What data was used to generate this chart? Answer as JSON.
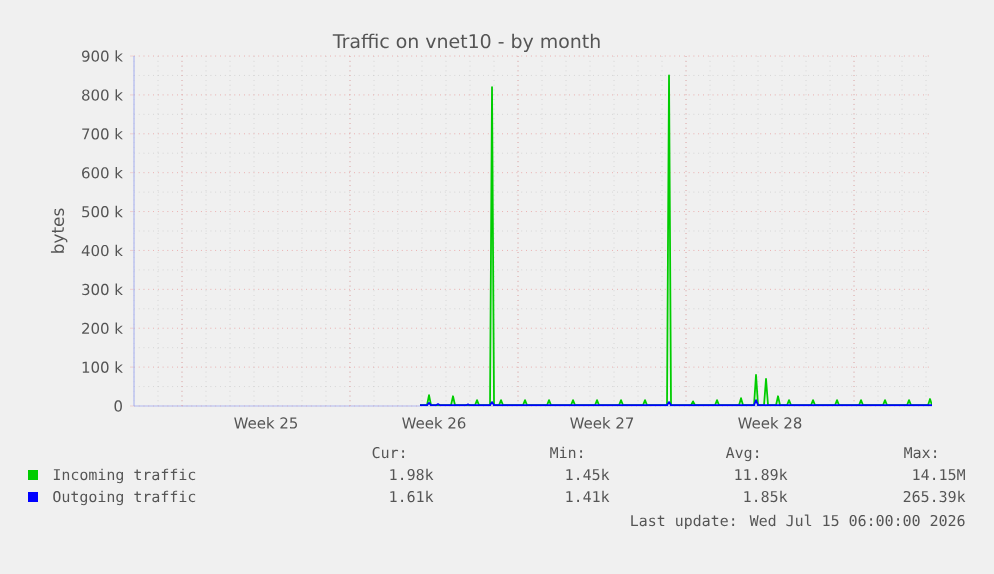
{
  "chart_data": {
    "type": "line",
    "title": "Traffic on vnet10 - by month",
    "ylabel": "bytes",
    "xlim": [
      "2026-06-12",
      "2026-07-15T06:00"
    ],
    "ylim": [
      0,
      900000
    ],
    "xticks": [
      {
        "value": "2026-06-14",
        "label": null
      },
      {
        "value": "2026-06-17T12:00",
        "label": "Week 25"
      },
      {
        "value": "2026-06-21",
        "label": null
      },
      {
        "value": "2026-06-24T12:00",
        "label": "Week 26"
      },
      {
        "value": "2026-06-28",
        "label": null
      },
      {
        "value": "2026-07-01T12:00",
        "label": "Week 27"
      },
      {
        "value": "2026-07-05",
        "label": null
      },
      {
        "value": "2026-07-08T12:00",
        "label": "Week 28"
      },
      {
        "value": "2026-07-12",
        "label": null
      }
    ],
    "yticks": [
      0,
      {
        "value": 100000,
        "label": "100 k"
      },
      {
        "value": 200000,
        "label": "200 k"
      },
      {
        "value": 300000,
        "label": "300 k"
      },
      {
        "value": 400000,
        "label": "400 k"
      },
      {
        "value": 500000,
        "label": "500 k"
      },
      {
        "value": 600000,
        "label": "600 k"
      },
      {
        "value": 700000,
        "label": "700 k"
      },
      {
        "value": 800000,
        "label": "800 k"
      },
      {
        "value": 900000,
        "label": "900 k"
      }
    ],
    "grid": true,
    "legend": "bottom",
    "marker": "none",
    "line_style": "solid",
    "series": [
      {
        "name": "Incoming traffic",
        "color": "#00cc00",
        "x": [
          "2026-06-23T22:00",
          "2026-06-24T05:00",
          "2026-06-24T07:00",
          "2026-06-24T09:00",
          "2026-06-25T05:00",
          "2026-06-25T07:00",
          "2026-06-25T09:00",
          "2026-06-26T05:00",
          "2026-06-26T07:00",
          "2026-06-26T09:00",
          "2026-06-26T20:00",
          "2026-06-26T22:00",
          "2026-06-27T00:00",
          "2026-06-27T05:00",
          "2026-06-27T07:00",
          "2026-06-27T09:00",
          "2026-06-28T05:00",
          "2026-06-28T07:00",
          "2026-06-28T09:00",
          "2026-06-29T05:00",
          "2026-06-29T07:00",
          "2026-06-29T09:00",
          "2026-06-30T05:00",
          "2026-06-30T07:00",
          "2026-06-30T09:00",
          "2026-07-01T05:00",
          "2026-07-01T07:00",
          "2026-07-01T09:00",
          "2026-07-02T05:00",
          "2026-07-02T07:00",
          "2026-07-02T09:00",
          "2026-07-03T05:00",
          "2026-07-03T07:00",
          "2026-07-03T09:00",
          "2026-07-04T05:00",
          "2026-07-04T07:00",
          "2026-07-04T09:00",
          "2026-07-05T05:00",
          "2026-07-05T07:00",
          "2026-07-05T09:00",
          "2026-07-06T05:00",
          "2026-07-06T07:00",
          "2026-07-06T09:00",
          "2026-07-07T05:00",
          "2026-07-07T07:00",
          "2026-07-07T09:00",
          "2026-07-07T20:00",
          "2026-07-07T22:00",
          "2026-07-08T00:00",
          "2026-07-08T06:00",
          "2026-07-08T08:00",
          "2026-07-08T10:00",
          "2026-07-08T18:00",
          "2026-07-08T20:00",
          "2026-07-08T22:00",
          "2026-07-09T05:00",
          "2026-07-09T07:00",
          "2026-07-09T09:00",
          "2026-07-10T05:00",
          "2026-07-10T07:00",
          "2026-07-10T09:00",
          "2026-07-11T05:00",
          "2026-07-11T07:00",
          "2026-07-11T09:00",
          "2026-07-12T05:00",
          "2026-07-12T07:00",
          "2026-07-12T09:00",
          "2026-07-13T05:00",
          "2026-07-13T07:00",
          "2026-07-13T09:00",
          "2026-07-14T05:00",
          "2026-07-14T07:00",
          "2026-07-14T09:00",
          "2026-07-15T02:00",
          "2026-07-15T04:00",
          "2026-07-15T06:00"
        ],
        "values": [
          2000,
          2000,
          28000,
          2000,
          2000,
          25000,
          2000,
          2000,
          15000,
          2000,
          2000,
          820000,
          2000,
          2000,
          15000,
          2000,
          2000,
          15000,
          2000,
          2000,
          15000,
          2000,
          2000,
          15000,
          2000,
          2000,
          15000,
          2000,
          2000,
          15000,
          2000,
          2000,
          15000,
          2000,
          2000,
          850000,
          2000,
          2000,
          12000,
          2000,
          2000,
          15000,
          2000,
          2000,
          20000,
          2000,
          2000,
          80000,
          2000,
          2000,
          70000,
          2000,
          2000,
          25000,
          2000,
          2000,
          15000,
          2000,
          2000,
          15000,
          2000,
          2000,
          15000,
          2000,
          2000,
          15000,
          2000,
          2000,
          15000,
          2000,
          2000,
          15000,
          2000,
          2000,
          18000,
          2000
        ]
      },
      {
        "name": "Outgoing traffic",
        "color": "#0000ff",
        "x": [
          "2026-06-23T22:00",
          "2026-06-24T05:00",
          "2026-06-24T07:00",
          "2026-06-24T09:00",
          "2026-06-24T14:00",
          "2026-06-24T16:00",
          "2026-06-24T18:00",
          "2026-06-25T20:00",
          "2026-06-25T22:00",
          "2026-06-26T00:00",
          "2026-06-26T20:00",
          "2026-06-26T22:00",
          "2026-06-27T00:00",
          "2026-07-04T05:00",
          "2026-07-04T07:00",
          "2026-07-04T09:00",
          "2026-07-07T20:00",
          "2026-07-07T22:00",
          "2026-07-08T00:00",
          "2026-07-15T06:00"
        ],
        "values": [
          2000,
          2000,
          8000,
          2000,
          2000,
          5000,
          2000,
          2000,
          4000,
          2000,
          2000,
          10000,
          2000,
          2000,
          10000,
          2000,
          2000,
          15000,
          2000,
          2000
        ]
      }
    ],
    "annotations": [
      "Cur:",
      "Min:",
      "Avg:",
      "Max:",
      "1.98k",
      "1.45k",
      "11.89k",
      "14.15M",
      "1.61k",
      "1.41k",
      "1.85k",
      "265.39k",
      "Last update: Wed Jul 15 06:00:00 2026"
    ]
  }
}
